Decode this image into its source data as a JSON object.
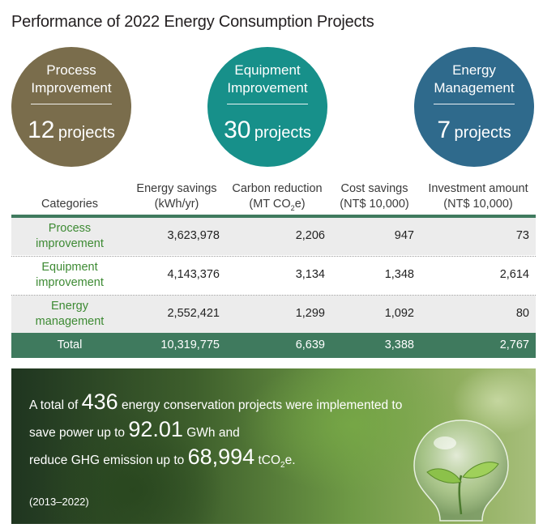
{
  "title": "Performance of 2022 Energy Consumption Projects",
  "circles": [
    {
      "line1": "Process",
      "line2": "Improvement",
      "number": "12",
      "unit": "projects",
      "color": "#7a6d4c"
    },
    {
      "line1": "Equipment",
      "line2": "Improvement",
      "number": "30",
      "unit": "projects",
      "color": "#17908a"
    },
    {
      "line1": "Energy",
      "line2": "Management",
      "number": "7",
      "unit": "projects",
      "color": "#2f6a8c"
    }
  ],
  "table": {
    "headers": {
      "categories": "Categories",
      "energy_1": "Energy savings",
      "energy_2": "(kWh/yr)",
      "carbon_1": "Carbon reduction",
      "carbon_2a": "(MT CO",
      "carbon_sub": "2",
      "carbon_2b": "e)",
      "cost_1": "Cost savings",
      "cost_2": "(NT$ 10,000)",
      "invest_1": "Investment amount",
      "invest_2": "(NT$ 10,000)"
    },
    "rows": [
      {
        "cat_1": "Process",
        "cat_2": "improvement",
        "energy": "3,623,978",
        "carbon": "2,206",
        "cost": "947",
        "invest": "73"
      },
      {
        "cat_1": "Equipment",
        "cat_2": "improvement",
        "energy": "4,143,376",
        "carbon": "3,134",
        "cost": "1,348",
        "invest": "2,614"
      },
      {
        "cat_1": "Energy",
        "cat_2": "management",
        "energy": "2,552,421",
        "carbon": "1,299",
        "cost": "1,092",
        "invest": "80"
      }
    ],
    "total": {
      "label": "Total",
      "energy": "10,319,775",
      "carbon": "6,639",
      "cost": "3,388",
      "invest": "2,767"
    },
    "accent_color": "#3f7a5e",
    "category_color": "#3d8a33"
  },
  "banner": {
    "l1_pre": "A total of ",
    "l1_num": "436",
    "l1_post": " energy conservation projects were implemented to",
    "l2_pre": "save power up to ",
    "l2_num": "92.01",
    "l2_post": " GWh and",
    "l3_pre": "reduce GHG emission up to ",
    "l3_num": "68,994",
    "l3_unit_a": " tCO",
    "l3_sub": "2",
    "l3_unit_b": "e.",
    "range": "(2013–2022)",
    "icon": "lightbulb-with-plant"
  }
}
